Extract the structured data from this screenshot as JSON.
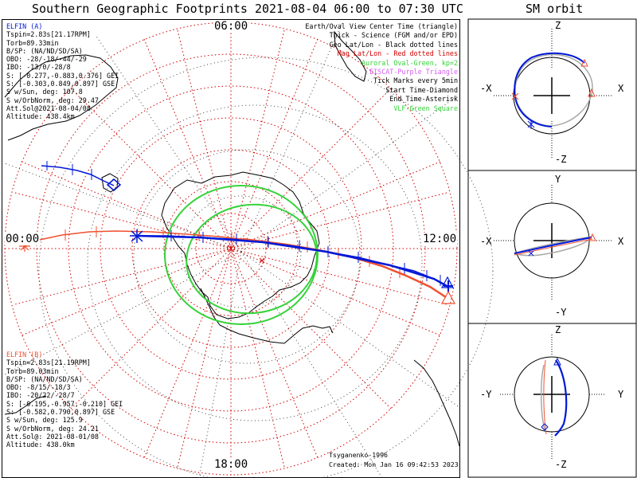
{
  "header": {
    "title": "Southern Geographic Footprints 2021-08-04 06:00 to 07:30 UTC",
    "orbit_title": "SM orbit"
  },
  "colors": {
    "elfin_a": "#0018d8",
    "elfin_b": "#f05030",
    "aurora": "#36d23a",
    "grid": "#d20000",
    "eiscat": "#d55cf2",
    "orbit_gray": "#a9a9a9"
  },
  "map": {
    "clock_labels": [
      "06:00",
      "00:00",
      "12:00",
      "18:00"
    ],
    "legend": [
      {
        "text": "Earth/Oval View Center Time (triangle)",
        "color": "#000000"
      },
      {
        "text": "Thick - Science (FGM and/or EPD)",
        "color": "#000000"
      },
      {
        "text": "Geo Lat/Lon - Black dotted lines",
        "color": "#000000"
      },
      {
        "text": "Mag Lat/Lon - Red dotted lines",
        "color": "#d20000"
      },
      {
        "text": "Auroral Oval-Green, kp=2",
        "color": "#36d23a"
      },
      {
        "text": "EISCAT-Purple Triangle",
        "color": "#d55cf2"
      },
      {
        "text": "Tick Marks every 5min",
        "color": "#000000"
      },
      {
        "text": "Start Time-Diamond",
        "color": "#000000"
      },
      {
        "text": "End Time-Asterisk",
        "color": "#000000"
      },
      {
        "text": "VLF-Green Square",
        "color": "#36d23a"
      }
    ],
    "elfin_a": {
      "title": "ELFIN (A)",
      "lines": [
        "Tspin=2.83s[21.17RPM]",
        "Torb=89.33min",
        "B/SP: (NA/ND/SD/SA)",
        "OBO: -28/-18/-44/-29",
        "IBO: -13/0/-28/8",
        "S: [-0.277,-0.883,0.376] GEI",
        "S: [-0.303,0.849,0.897] GSE",
        "S w/Sun, deg: 107.8",
        "S w/OrbNorm, deg: 29.47",
        "Att.Sol@2021-08-04/08",
        "Altitude: 438.4km"
      ]
    },
    "elfin_b": {
      "title": "ELFIN (B)",
      "lines": [
        "Tspin=2.83s[21.19RPM]",
        "Torb=89.03min",
        "B/SP: (NA/ND/SD/SA)",
        "OBO: -8/15/-18/3",
        "IBO: -20/22/-28/7",
        "S: [-0.195,-0.957,-0.210] GEI",
        "S: [-0.582,0.790,0.897] GSE",
        "S w/Sun, deg: 125.9",
        "S w/OrbNorm, deg: 24.21",
        "Att.Sol@: 2021-08-01/08",
        "Altitude: 438.0km"
      ]
    },
    "credit": {
      "model": "Tsyganenko-1996",
      "created": "Created: Mon Jan 16 09:42:53 2023"
    }
  },
  "orbit_panels": [
    {
      "top": "Z",
      "bottom": "-Z",
      "left": "-X",
      "right": "X"
    },
    {
      "top": "Y",
      "bottom": "-Y",
      "left": "-X",
      "right": "X"
    },
    {
      "top": "Z",
      "bottom": "-Z",
      "left": "-Y",
      "right": "Y"
    }
  ]
}
